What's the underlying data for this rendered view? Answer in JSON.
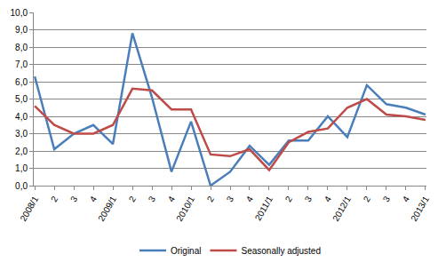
{
  "chart_data": {
    "type": "line",
    "categories": [
      "2008/1",
      "2",
      "3",
      "4",
      "2009/1",
      "2",
      "3",
      "4",
      "2010/1",
      "2",
      "3",
      "4",
      "2011/1",
      "2",
      "3",
      "4",
      "2012/1",
      "2",
      "3",
      "4",
      "2013/1"
    ],
    "series": [
      {
        "name": "Original",
        "color": "#4a7ebb",
        "values": [
          6.3,
          2.1,
          3.0,
          3.5,
          2.4,
          8.8,
          5.1,
          0.8,
          3.7,
          0.0,
          0.8,
          2.3,
          1.2,
          2.6,
          2.6,
          4.0,
          2.8,
          5.8,
          4.7,
          4.5,
          4.1
        ]
      },
      {
        "name": "Seasonally adjusted",
        "color": "#be4b48",
        "values": [
          4.6,
          3.5,
          3.0,
          3.0,
          3.5,
          5.6,
          5.5,
          4.4,
          4.4,
          1.8,
          1.7,
          2.1,
          0.9,
          2.5,
          3.1,
          3.3,
          4.5,
          5.0,
          4.1,
          4.0,
          3.8
        ]
      }
    ],
    "ylim": [
      0,
      10
    ],
    "yticks": [
      {
        "value": 0,
        "label": "0,0"
      },
      {
        "value": 1,
        "label": "1,0"
      },
      {
        "value": 2,
        "label": "2,0"
      },
      {
        "value": 3,
        "label": "3,0"
      },
      {
        "value": 4,
        "label": "4,0"
      },
      {
        "value": 5,
        "label": "5,0"
      },
      {
        "value": 6,
        "label": "6,0"
      },
      {
        "value": 7,
        "label": "7,0"
      },
      {
        "value": 8,
        "label": "8,0"
      },
      {
        "value": 9,
        "label": "9,0"
      },
      {
        "value": 10,
        "label": "10,0"
      }
    ],
    "grid": true,
    "legend": "bottom"
  }
}
